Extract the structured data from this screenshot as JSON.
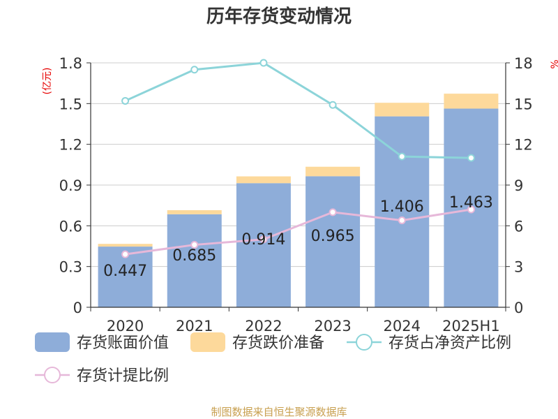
{
  "chart_data": {
    "type": "bar",
    "title": "历年存货变动情况",
    "categories": [
      "2020",
      "2021",
      "2022",
      "2023",
      "2024",
      "2025H1"
    ],
    "series": [
      {
        "name": "存货账面价值",
        "kind": "bar",
        "axis": "left",
        "color": "#8eadd9",
        "values": [
          0.447,
          0.685,
          0.914,
          0.965,
          1.406,
          1.463
        ]
      },
      {
        "name": "存货跌价准备",
        "kind": "bar-stack",
        "axis": "left",
        "color": "#fdd99b",
        "values": [
          0.02,
          0.03,
          0.05,
          0.07,
          0.1,
          0.11
        ]
      },
      {
        "name": "存货占净资产比例",
        "kind": "line",
        "axis": "right",
        "color": "#8cd4d9",
        "values": [
          15.2,
          17.5,
          18.0,
          14.9,
          11.1,
          11.0
        ]
      },
      {
        "name": "存货计提比例",
        "kind": "line",
        "axis": "right",
        "color": "#e6b8d9",
        "values": [
          3.9,
          4.6,
          5.0,
          7.0,
          6.4,
          7.2
        ]
      }
    ],
    "data_labels": [
      "0.447",
      "0.685",
      "0.914",
      "0.965",
      "1.406",
      "1.463"
    ],
    "y_left": {
      "label": "(亿元)",
      "ylim": [
        0,
        1.8
      ],
      "ticks": [
        "0",
        "0.3",
        "0.6",
        "0.9",
        "1.2",
        "1.5",
        "1.8"
      ]
    },
    "y_right": {
      "label": "%",
      "ylim": [
        0,
        18
      ],
      "ticks": [
        "0",
        "3",
        "6",
        "9",
        "12",
        "15",
        "18"
      ]
    },
    "grid": true,
    "legend_position": "bottom"
  },
  "footer": {
    "source": "制图数据来自恒生聚源数据库"
  }
}
